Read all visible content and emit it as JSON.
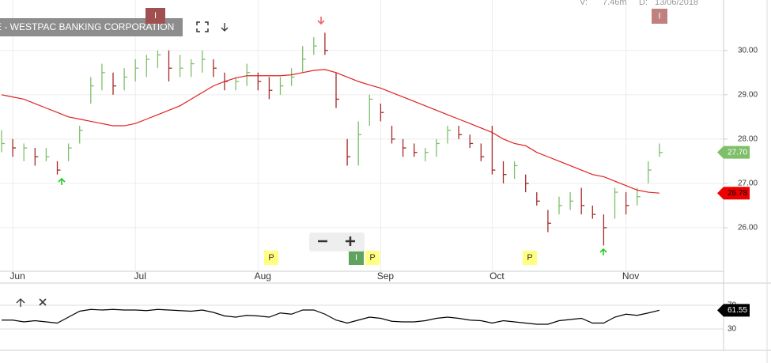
{
  "chart_data": [
    {
      "type": "ohlc",
      "title": "E - WESTPAC BANKING CORPORATION",
      "volume_label": "V:",
      "volume": "7.46m",
      "date_label": "D:",
      "date": "13/06/2018",
      "markers": [
        "I",
        "I",
        "P",
        "I",
        "P",
        "P"
      ],
      "categories": [
        null,
        "Jun",
        null,
        null,
        null,
        null,
        null,
        null,
        null,
        null,
        null,
        null,
        "Jul",
        null,
        null,
        null,
        null,
        null,
        null,
        null,
        null,
        null,
        null,
        "Aug",
        null,
        null,
        null,
        null,
        null,
        null,
        null,
        null,
        null,
        null,
        "Sep",
        null,
        null,
        null,
        null,
        null,
        null,
        null,
        null,
        null,
        "Oct",
        null,
        null,
        null,
        null,
        null,
        null,
        null,
        null,
        null,
        null,
        null,
        "Nov",
        null,
        null,
        null
      ],
      "ylim": [
        25.07,
        30.96
      ],
      "yticks": [
        {
          "value": 26,
          "label": "26.00"
        },
        {
          "value": 27,
          "label": "27.00"
        },
        {
          "value": 28,
          "label": "28.00"
        },
        {
          "value": 29,
          "label": "29.00"
        },
        {
          "value": 30,
          "label": "30.00"
        }
      ],
      "series": [
        {
          "color_up": "#7fbf6a",
          "color_down": "#a52a2a",
          "last_label": "27.70",
          "label_color": "#7fbf6a",
          "values": [
            27.9,
            27.8,
            27.8,
            27.6,
            27.6,
            27.3,
            27.8,
            28.2,
            29.2,
            29.5,
            29.2,
            29.4,
            29.6,
            29.8,
            29.9,
            29.6,
            29.6,
            29.7,
            29.8,
            29.6,
            29.3,
            29.3,
            29.5,
            29.3,
            29.1,
            29.2,
            29.4,
            29.8,
            30.1,
            30.0,
            28.9,
            27.6,
            28.1,
            28.9,
            28.6,
            28.0,
            27.8,
            27.7,
            27.7,
            27.9,
            28.2,
            28.1,
            27.9,
            27.6,
            27.3,
            27.2,
            27.4,
            27.0,
            26.6,
            26.1,
            26.5,
            26.6,
            26.5,
            26.3,
            26.0,
            26.8,
            26.5,
            26.7,
            27.3,
            27.7
          ],
          "high": [
            28.2,
            28.0,
            27.9,
            27.8,
            27.8,
            27.5,
            27.9,
            28.3,
            29.4,
            29.7,
            29.5,
            29.6,
            29.8,
            29.9,
            30.0,
            30.0,
            29.9,
            29.8,
            30.0,
            29.8,
            29.5,
            29.4,
            29.7,
            29.5,
            29.4,
            29.4,
            29.6,
            30.1,
            30.3,
            30.4,
            29.5,
            28.0,
            28.4,
            29.0,
            28.8,
            28.3,
            28.0,
            27.9,
            27.8,
            28.0,
            28.3,
            28.3,
            28.1,
            27.9,
            28.3,
            27.5,
            27.5,
            27.2,
            26.8,
            26.4,
            26.7,
            26.8,
            26.9,
            26.5,
            26.3,
            26.9,
            26.8,
            26.9,
            27.5,
            27.9
          ],
          "low": [
            27.7,
            27.6,
            27.5,
            27.4,
            27.5,
            27.2,
            27.5,
            27.9,
            28.8,
            29.1,
            29.0,
            29.1,
            29.3,
            29.4,
            29.6,
            29.3,
            29.4,
            29.4,
            29.5,
            29.4,
            29.1,
            29.1,
            29.2,
            29.1,
            28.9,
            29.0,
            29.2,
            29.5,
            29.9,
            29.9,
            28.7,
            27.4,
            27.4,
            28.3,
            28.4,
            27.9,
            27.6,
            27.6,
            27.5,
            27.6,
            27.9,
            28.0,
            27.8,
            27.5,
            27.2,
            27.0,
            27.1,
            26.8,
            26.5,
            25.9,
            26.3,
            26.4,
            26.3,
            26.2,
            25.6,
            26.2,
            26.3,
            26.5,
            27.0,
            27.6
          ]
        },
        {
          "color": "#e02020",
          "last_label": "26.78",
          "label_color": "#ee0000",
          "values": [
            29.0,
            28.95,
            28.9,
            28.8,
            28.7,
            28.6,
            28.5,
            28.45,
            28.4,
            28.35,
            28.3,
            28.3,
            28.35,
            28.45,
            28.55,
            28.65,
            28.75,
            28.9,
            29.05,
            29.2,
            29.3,
            29.38,
            29.43,
            29.43,
            29.43,
            29.43,
            29.45,
            29.5,
            29.55,
            29.57,
            29.5,
            29.4,
            29.3,
            29.22,
            29.15,
            29.05,
            28.95,
            28.85,
            28.75,
            28.65,
            28.55,
            28.45,
            28.35,
            28.25,
            28.15,
            28.0,
            27.9,
            27.85,
            27.7,
            27.6,
            27.5,
            27.4,
            27.3,
            27.2,
            27.15,
            27.05,
            26.95,
            26.85,
            26.8,
            26.78
          ]
        }
      ]
    },
    {
      "type": "line",
      "ylim": [
        0,
        100
      ],
      "yticks": [
        30,
        70
      ],
      "series": [
        {
          "color": "#000000",
          "last_label": "61.55",
          "values": [
            45,
            45,
            42,
            44,
            42,
            40,
            50,
            60,
            63,
            62,
            63,
            62,
            62,
            61,
            63,
            62,
            61,
            60,
            62,
            58,
            52,
            50,
            53,
            52,
            50,
            57,
            55,
            62,
            62,
            55,
            45,
            40,
            45,
            50,
            48,
            43,
            42,
            42,
            44,
            48,
            50,
            48,
            45,
            44,
            40,
            44,
            42,
            40,
            38,
            38,
            44,
            46,
            48,
            40,
            40,
            50,
            55,
            53,
            57,
            61.55
          ]
        }
      ]
    }
  ]
}
